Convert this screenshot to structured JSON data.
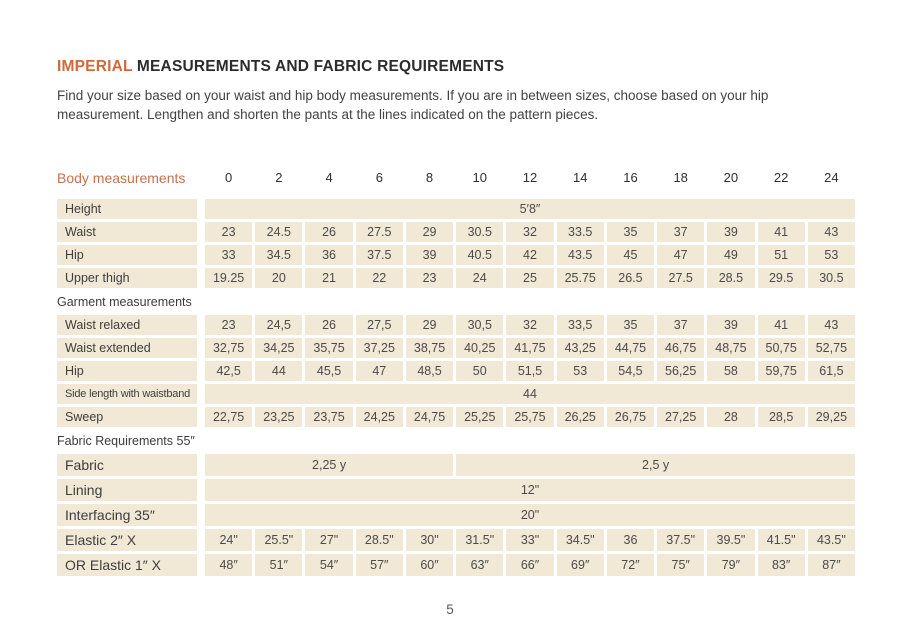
{
  "header": {
    "title_highlight": "IMPERIAL",
    "title_rest": " MEASUREMENTS AND FABRIC REQUIREMENTS",
    "intro": "Find your size based on your waist and hip body measurements. If you are in between sizes, choose based on your hip measurement. Lengthen and shorten the pants at the lines indicated on the pattern pieces."
  },
  "colors": {
    "accent": "#d2693a",
    "table_header_accent": "#c8704d",
    "cell_background": "#f1e8d5"
  },
  "table": {
    "header": {
      "label": "Body measurements",
      "sizes": [
        "0",
        "2",
        "4",
        "6",
        "8",
        "10",
        "12",
        "14",
        "16",
        "18",
        "20",
        "22",
        "24"
      ]
    },
    "rows": [
      {
        "kind": "data",
        "label": "Height",
        "cells": [
          {
            "text": "5′8″",
            "span": 13
          }
        ]
      },
      {
        "kind": "data",
        "label": "Waist",
        "cells": [
          "23",
          "24.5",
          "26",
          "27.5",
          "29",
          "30.5",
          "32",
          "33.5",
          "35",
          "37",
          "39",
          "41",
          "43"
        ]
      },
      {
        "kind": "data",
        "label": "Hip",
        "cells": [
          "33",
          "34.5",
          "36",
          "37.5",
          "39",
          "40.5",
          "42",
          "43.5",
          "45",
          "47",
          "49",
          "51",
          "53"
        ]
      },
      {
        "kind": "data",
        "label": "Upper thigh",
        "cells": [
          "19.25",
          "20",
          "21",
          "22",
          "23",
          "24",
          "25",
          "25.75",
          "26.5",
          "27.5",
          "28.5",
          "29.5",
          "30.5"
        ]
      },
      {
        "kind": "section",
        "label": "Garment measurements"
      },
      {
        "kind": "data",
        "label": "Waist relaxed",
        "cells": [
          "23",
          "24,5",
          "26",
          "27,5",
          "29",
          "30,5",
          "32",
          "33,5",
          "35",
          "37",
          "39",
          "41",
          "43"
        ]
      },
      {
        "kind": "data",
        "label": "Waist extended",
        "cells": [
          "32,75",
          "34,25",
          "35,75",
          "37,25",
          "38,75",
          "40,25",
          "41,75",
          "43,25",
          "44,75",
          "46,75",
          "48,75",
          "50,75",
          "52,75"
        ]
      },
      {
        "kind": "data",
        "label": "Hip",
        "cells": [
          "42,5",
          "44",
          "45,5",
          "47",
          "48,5",
          "50",
          "51,5",
          "53",
          "54,5",
          "56,25",
          "58",
          "59,75",
          "61,5"
        ]
      },
      {
        "kind": "data",
        "label": "Side length with waistband",
        "label_style": "compact",
        "cells": [
          {
            "text": "44",
            "span": 13
          }
        ]
      },
      {
        "kind": "data",
        "label": "Sweep",
        "cells": [
          "22,75",
          "23,25",
          "23,75",
          "24,25",
          "24,75",
          "25,25",
          "25,75",
          "26,25",
          "26,75",
          "27,25",
          "28",
          "28,5",
          "29,25"
        ]
      },
      {
        "kind": "section",
        "label": "Fabric Requirements 55″"
      },
      {
        "kind": "data",
        "label": "Fabric",
        "row_style": "large",
        "cells": [
          {
            "text": "2,25 y",
            "span": 5
          },
          {
            "text": "2,5 y",
            "span": 8
          }
        ]
      },
      {
        "kind": "data",
        "label": "Lining",
        "row_style": "large",
        "cells": [
          {
            "text": "12\"",
            "span": 13
          }
        ]
      },
      {
        "kind": "data",
        "label": "Interfacing 35″",
        "row_style": "large",
        "cells": [
          {
            "text": "20\"",
            "span": 13
          }
        ]
      },
      {
        "kind": "data",
        "label": "Elastic 2″ X",
        "row_style": "large",
        "cells": [
          "24\"",
          "25.5\"",
          "27\"",
          "28.5\"",
          "30\"",
          "31.5\"",
          "33\"",
          "34.5\"",
          "36",
          "37.5\"",
          "39.5\"",
          "41.5\"",
          "43.5\""
        ]
      },
      {
        "kind": "data",
        "label": "OR Elastic 1″  X",
        "row_style": "large",
        "cells": [
          "48″",
          "51″",
          "54″",
          "57″",
          "60″",
          "63″",
          "66″",
          "69″",
          "72″",
          "75″",
          "79″",
          "83″",
          "87″"
        ]
      }
    ]
  },
  "footer": {
    "page_number": "5"
  }
}
